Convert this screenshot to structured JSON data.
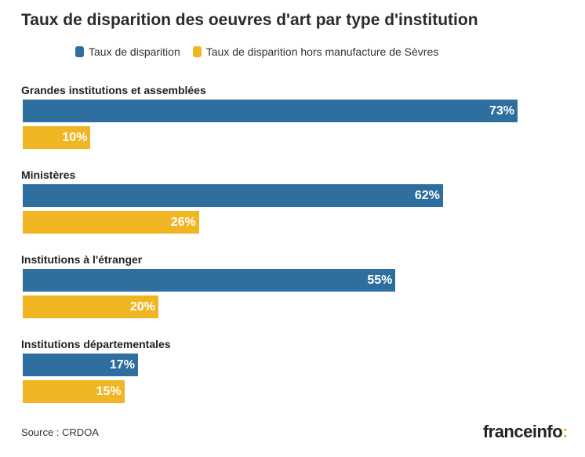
{
  "header": {
    "title": "Taux de disparition des oeuvres d'art par type d'institution"
  },
  "legend": [
    {
      "label": "Taux de disparition",
      "color": "#2f6f9f"
    },
    {
      "label": "Taux de disparition hors manufacture de Sèvres",
      "color": "#f0b523"
    }
  ],
  "chart_data": {
    "type": "bar",
    "orientation": "horizontal",
    "categories": [
      "Grandes institutions et assemblées",
      "Ministères",
      "Institutions à l'étranger",
      "Institutions départementales"
    ],
    "series": [
      {
        "name": "Taux de disparition",
        "values": [
          73,
          62,
          55,
          17
        ],
        "labels": [
          "73%",
          "62%",
          "55%",
          "17%"
        ],
        "color": "#2f6f9f"
      },
      {
        "name": "Taux de disparition hors manufacture de Sèvres",
        "values": [
          10,
          26,
          20,
          15
        ],
        "labels": [
          "10%",
          "26%",
          "20%",
          "15%"
        ],
        "color": "#f0b523"
      }
    ],
    "xlim": [
      0,
      73
    ],
    "grid": false,
    "legend_position": "top"
  },
  "footer": {
    "source": "Source : CRDOA",
    "logo_text": "franceinfo",
    "logo_mark": ":"
  }
}
